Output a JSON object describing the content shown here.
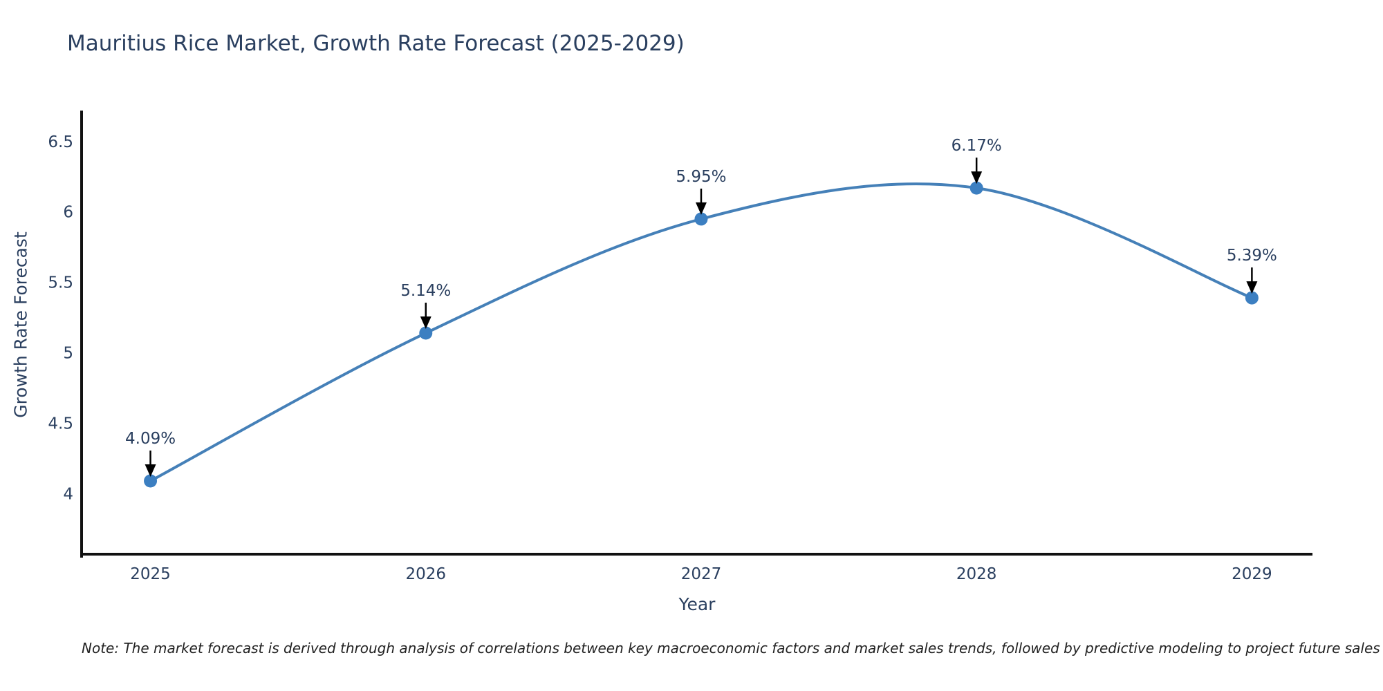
{
  "chart": {
    "title": "Mauritius Rice Market, Growth Rate Forecast (2025-2029)",
    "note": "Note: The market forecast is derived through analysis of correlations between key macroeconomic factors and market sales trends, followed by predictive modeling to project future sales"
  },
  "chart_data": {
    "type": "line",
    "line_shape": "spline",
    "title": "Mauritius Rice Market, Growth Rate Forecast (2025-2029)",
    "x": [
      2025,
      2026,
      2027,
      2028,
      2029
    ],
    "y": [
      4.09,
      5.14,
      5.95,
      6.17,
      5.39
    ],
    "point_labels": [
      "4.09%",
      "5.14%",
      "5.95%",
      "6.17%",
      "5.39%"
    ],
    "xlabel": "Year",
    "ylabel": "Growth Rate Forecast",
    "xticks": [
      2025,
      2026,
      2027,
      2028,
      2029
    ],
    "yticks": [
      4,
      4.5,
      5,
      5.5,
      6,
      6.5
    ],
    "xlim": [
      2024.75,
      2029.22
    ],
    "ylim": [
      3.57,
      6.72
    ],
    "grid": false,
    "legend": "none",
    "annotation_style": "down-arrow",
    "colors": {
      "line": "#4580b8",
      "marker": "#3c7fc1",
      "axis": "#111111",
      "text": "#2a3f5f",
      "annotation_arrow": "#000000",
      "background": "#ffffff"
    }
  }
}
